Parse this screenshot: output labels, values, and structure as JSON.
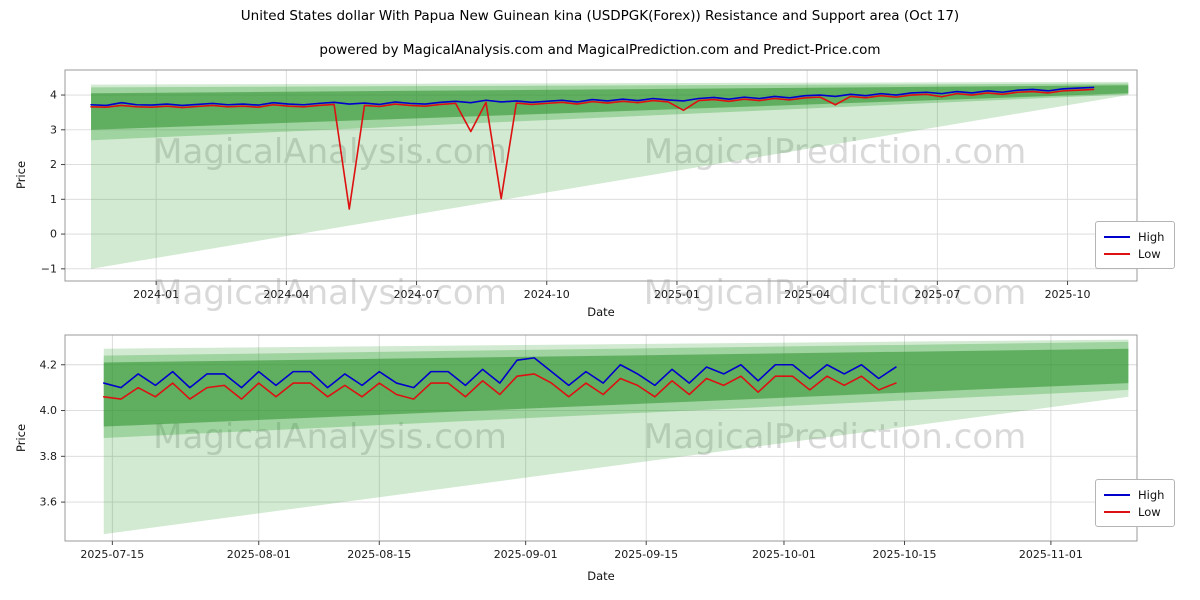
{
  "title": "United States dollar With Papua New Guinean kina (USDPGK(Forex)) Resistance and Support area (Oct 17)",
  "subtitle": "powered by MagicalAnalysis.com and MagicalPrediction.com and Predict-Price.com",
  "watermarks": {
    "left": "MagicalAnalysis.com",
    "right": "MagicalPrediction.com"
  },
  "legend": {
    "high": "High",
    "low": "Low"
  },
  "colors": {
    "high": "#0000cc",
    "low": "#dd1111",
    "band_light": "rgba(44,160,44,0.22)",
    "band_mid": "rgba(44,160,44,0.30)",
    "band_dark": "rgba(34,139,34,0.50)",
    "grid": "#d9d9d9",
    "frame": "#9a9a9a",
    "watermark_gray": "#808080"
  },
  "chart_data": [
    {
      "type": "line",
      "title": "",
      "xlabel": "Date",
      "ylabel": "Price",
      "grid": true,
      "legend_position": "lower right",
      "xlim": [
        0.9,
        25.6
      ],
      "ylim": [
        -1.35,
        4.72
      ],
      "xticks": [
        {
          "v": 3,
          "label": "2024-01"
        },
        {
          "v": 6,
          "label": "2024-04"
        },
        {
          "v": 9,
          "label": "2024-07"
        },
        {
          "v": 12,
          "label": "2024-10"
        },
        {
          "v": 15,
          "label": "2025-01"
        },
        {
          "v": 18,
          "label": "2025-04"
        },
        {
          "v": 21,
          "label": "2025-07"
        },
        {
          "v": 24,
          "label": "2025-10"
        }
      ],
      "yticks": [
        {
          "v": -1,
          "label": "−1"
        },
        {
          "v": 0,
          "label": "0"
        },
        {
          "v": 1,
          "label": "1"
        },
        {
          "v": 2,
          "label": "2"
        },
        {
          "v": 3,
          "label": "3"
        },
        {
          "v": 4,
          "label": "4"
        }
      ],
      "bands": [
        {
          "name": "support-area-outer",
          "fill": "rgba(44,160,44,0.22)",
          "points": [
            [
              1.5,
              -1.0
            ],
            [
              25.4,
              4.0
            ],
            [
              25.4,
              4.38
            ],
            [
              1.5,
              4.3
            ]
          ]
        },
        {
          "name": "support-area-mid",
          "fill": "rgba(44,160,44,0.30)",
          "points": [
            [
              1.5,
              2.7
            ],
            [
              25.4,
              4.02
            ],
            [
              25.4,
              4.33
            ],
            [
              1.5,
              4.22
            ]
          ]
        },
        {
          "name": "resistance-band-inner",
          "fill": "rgba(34,139,34,0.50)",
          "points": [
            [
              1.5,
              3.0
            ],
            [
              25.4,
              4.05
            ],
            [
              25.4,
              4.28
            ],
            [
              1.5,
              4.05
            ]
          ]
        }
      ],
      "series": [
        {
          "name": "High",
          "color": "#0000cc",
          "x": [
            1.5,
            1.85,
            2.2,
            2.55,
            2.9,
            3.25,
            3.6,
            3.95,
            4.3,
            4.65,
            5.0,
            5.35,
            5.7,
            6.05,
            6.4,
            6.75,
            7.1,
            7.45,
            7.8,
            8.15,
            8.5,
            8.85,
            9.2,
            9.55,
            9.9,
            10.25,
            10.6,
            10.95,
            11.3,
            11.65,
            12.0,
            12.35,
            12.7,
            13.05,
            13.4,
            13.75,
            14.1,
            14.45,
            14.8,
            15.15,
            15.5,
            15.85,
            16.2,
            16.55,
            16.9,
            17.25,
            17.6,
            17.95,
            18.3,
            18.65,
            19.0,
            19.35,
            19.7,
            20.05,
            20.4,
            20.75,
            21.1,
            21.45,
            21.8,
            22.15,
            22.5,
            22.85,
            23.2,
            23.55,
            23.9,
            24.25,
            24.6
          ],
          "y": [
            3.72,
            3.7,
            3.78,
            3.72,
            3.71,
            3.74,
            3.7,
            3.73,
            3.76,
            3.72,
            3.74,
            3.71,
            3.78,
            3.74,
            3.72,
            3.76,
            3.79,
            3.74,
            3.77,
            3.73,
            3.8,
            3.76,
            3.74,
            3.79,
            3.82,
            3.78,
            3.85,
            3.8,
            3.83,
            3.79,
            3.82,
            3.85,
            3.8,
            3.87,
            3.83,
            3.88,
            3.84,
            3.9,
            3.86,
            3.83,
            3.9,
            3.93,
            3.88,
            3.94,
            3.9,
            3.96,
            3.92,
            3.98,
            4.0,
            3.96,
            4.02,
            3.98,
            4.04,
            4.0,
            4.06,
            4.08,
            4.04,
            4.1,
            4.06,
            4.12,
            4.08,
            4.14,
            4.16,
            4.12,
            4.18,
            4.2,
            4.22
          ]
        },
        {
          "name": "Low",
          "color": "#dd1111",
          "x": [
            1.5,
            1.85,
            2.2,
            2.55,
            2.9,
            3.25,
            3.6,
            3.95,
            4.3,
            4.65,
            5.0,
            5.35,
            5.7,
            6.05,
            6.4,
            6.75,
            7.1,
            7.45,
            7.8,
            8.15,
            8.5,
            8.85,
            9.2,
            9.55,
            9.9,
            10.25,
            10.6,
            10.95,
            11.3,
            11.65,
            12.0,
            12.35,
            12.7,
            13.05,
            13.4,
            13.75,
            14.1,
            14.45,
            14.8,
            15.15,
            15.5,
            15.85,
            16.2,
            16.55,
            16.9,
            17.25,
            17.6,
            17.95,
            18.3,
            18.65,
            19.0,
            19.35,
            19.7,
            20.05,
            20.4,
            20.75,
            21.1,
            21.45,
            21.8,
            22.15,
            22.5,
            22.85,
            23.2,
            23.55,
            23.9,
            24.25,
            24.6
          ],
          "y": [
            3.66,
            3.65,
            3.7,
            3.66,
            3.65,
            3.68,
            3.64,
            3.67,
            3.7,
            3.66,
            3.68,
            3.65,
            3.72,
            3.68,
            3.66,
            3.7,
            3.73,
            0.72,
            3.7,
            3.67,
            3.74,
            3.7,
            3.68,
            3.73,
            3.76,
            2.95,
            3.79,
            1.02,
            3.77,
            3.73,
            3.76,
            3.79,
            3.74,
            3.81,
            3.77,
            3.82,
            3.78,
            3.84,
            3.8,
            3.56,
            3.84,
            3.87,
            3.82,
            3.88,
            3.84,
            3.9,
            3.86,
            3.92,
            3.94,
            3.72,
            3.96,
            3.92,
            3.98,
            3.94,
            4.0,
            4.02,
            3.95,
            4.04,
            4.0,
            4.06,
            4.02,
            4.08,
            4.1,
            4.06,
            4.12,
            4.14,
            4.16
          ]
        }
      ]
    },
    {
      "type": "line",
      "title": "",
      "xlabel": "Date",
      "ylabel": "Price",
      "grid": true,
      "legend_position": "lower right",
      "xlim": [
        8.5,
        133
      ],
      "ylim": [
        3.43,
        4.33
      ],
      "xticks": [
        {
          "v": 14,
          "label": "2025-07-15"
        },
        {
          "v": 31,
          "label": "2025-08-01"
        },
        {
          "v": 45,
          "label": "2025-08-15"
        },
        {
          "v": 62,
          "label": "2025-09-01"
        },
        {
          "v": 76,
          "label": "2025-09-15"
        },
        {
          "v": 92,
          "label": "2025-10-01"
        },
        {
          "v": 106,
          "label": "2025-10-15"
        },
        {
          "v": 123,
          "label": "2025-11-01"
        }
      ],
      "yticks": [
        {
          "v": 3.6,
          "label": "3.6"
        },
        {
          "v": 3.8,
          "label": "3.8"
        },
        {
          "v": 4.0,
          "label": "4.0"
        },
        {
          "v": 4.2,
          "label": "4.2"
        }
      ],
      "bands": [
        {
          "name": "support-area-outer",
          "fill": "rgba(44,160,44,0.22)",
          "points": [
            [
              13,
              3.46
            ],
            [
              132,
              4.06
            ],
            [
              132,
              4.31
            ],
            [
              13,
              4.27
            ]
          ]
        },
        {
          "name": "support-area-mid",
          "fill": "rgba(44,160,44,0.30)",
          "points": [
            [
              13,
              3.88
            ],
            [
              132,
              4.09
            ],
            [
              132,
              4.3
            ],
            [
              13,
              4.24
            ]
          ]
        },
        {
          "name": "resistance-band-inner",
          "fill": "rgba(34,139,34,0.50)",
          "points": [
            [
              13,
              3.93
            ],
            [
              132,
              4.12
            ],
            [
              132,
              4.27
            ],
            [
              13,
              4.21
            ]
          ]
        }
      ],
      "series": [
        {
          "name": "High",
          "color": "#0000cc",
          "x": [
            13,
            15,
            17,
            19,
            21,
            23,
            25,
            27,
            29,
            31,
            33,
            35,
            37,
            39,
            41,
            43,
            45,
            47,
            49,
            51,
            53,
            55,
            57,
            59,
            61,
            63,
            65,
            67,
            69,
            71,
            73,
            75,
            77,
            79,
            81,
            83,
            85,
            87,
            89,
            91,
            93,
            95,
            97,
            99,
            101,
            103,
            105
          ],
          "y": [
            4.12,
            4.1,
            4.16,
            4.11,
            4.17,
            4.1,
            4.16,
            4.16,
            4.1,
            4.17,
            4.11,
            4.17,
            4.17,
            4.1,
            4.16,
            4.11,
            4.17,
            4.12,
            4.1,
            4.17,
            4.17,
            4.11,
            4.18,
            4.12,
            4.22,
            4.23,
            4.17,
            4.11,
            4.17,
            4.12,
            4.2,
            4.16,
            4.11,
            4.18,
            4.12,
            4.19,
            4.16,
            4.2,
            4.13,
            4.2,
            4.2,
            4.14,
            4.2,
            4.16,
            4.2,
            4.14,
            4.19
          ]
        },
        {
          "name": "Low",
          "color": "#dd1111",
          "x": [
            13,
            15,
            17,
            19,
            21,
            23,
            25,
            27,
            29,
            31,
            33,
            35,
            37,
            39,
            41,
            43,
            45,
            47,
            49,
            51,
            53,
            55,
            57,
            59,
            61,
            63,
            65,
            67,
            69,
            71,
            73,
            75,
            77,
            79,
            81,
            83,
            85,
            87,
            89,
            91,
            93,
            95,
            97,
            99,
            101,
            103,
            105
          ],
          "y": [
            4.06,
            4.05,
            4.1,
            4.06,
            4.12,
            4.05,
            4.1,
            4.11,
            4.05,
            4.12,
            4.06,
            4.12,
            4.12,
            4.06,
            4.11,
            4.06,
            4.12,
            4.07,
            4.05,
            4.12,
            4.12,
            4.06,
            4.13,
            4.07,
            4.15,
            4.16,
            4.12,
            4.06,
            4.12,
            4.07,
            4.14,
            4.11,
            4.06,
            4.13,
            4.07,
            4.14,
            4.11,
            4.15,
            4.08,
            4.15,
            4.15,
            4.09,
            4.15,
            4.11,
            4.15,
            4.09,
            4.12
          ]
        }
      ]
    }
  ]
}
